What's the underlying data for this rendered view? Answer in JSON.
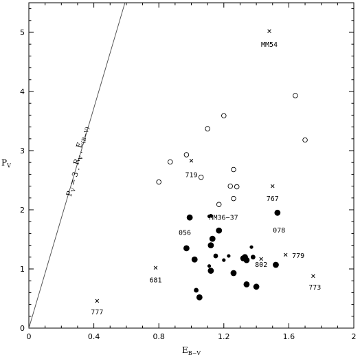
{
  "chart_data": {
    "type": "scatter",
    "xlim": [
      0,
      2
    ],
    "ylim": [
      0,
      5.5
    ],
    "xticks": [
      0,
      0.4,
      0.8,
      1.2,
      1.6,
      2
    ],
    "yticks": [
      0,
      1,
      2,
      3,
      4,
      5
    ],
    "xtick_labels": [
      "0",
      "0.4",
      "0.8",
      "1.2",
      "1.6",
      "2"
    ],
    "ytick_labels": [
      "0",
      "1",
      "2",
      "3",
      "4",
      "5"
    ],
    "xlabel": {
      "main": "E",
      "sub": "B−V"
    },
    "ylabel": {
      "main": "P",
      "sub": "V"
    },
    "grid": false,
    "relation_line": {
      "slope": 9.3,
      "label_parts": [
        "P",
        "V",
        " = 3 . ",
        "R",
        "V",
        " . ",
        "E",
        "(B−V)"
      ]
    },
    "open_points": [
      [
        0.8,
        2.47
      ],
      [
        0.87,
        2.81
      ],
      [
        0.97,
        2.93
      ],
      [
        1.06,
        2.55
      ],
      [
        1.1,
        3.37
      ],
      [
        1.2,
        3.59
      ],
      [
        1.17,
        2.09
      ],
      [
        1.24,
        2.4
      ],
      [
        1.26,
        2.68
      ],
      [
        1.26,
        2.19
      ],
      [
        1.28,
        2.39
      ],
      [
        1.64,
        3.93
      ],
      [
        1.7,
        3.18
      ]
    ],
    "filled_points": [
      {
        "x": 0.99,
        "y": 1.87,
        "s": "l"
      },
      {
        "x": 1.11,
        "y": 1.89,
        "s": "s"
      },
      {
        "x": 1.12,
        "y": 1.9,
        "s": "s"
      },
      {
        "x": 1.17,
        "y": 1.65,
        "s": "l"
      },
      {
        "x": 1.13,
        "y": 1.51,
        "s": "l"
      },
      {
        "x": 1.12,
        "y": 1.4,
        "s": "l"
      },
      {
        "x": 0.97,
        "y": 1.35,
        "s": "l"
      },
      {
        "x": 1.02,
        "y": 1.16,
        "s": "l"
      },
      {
        "x": 1.11,
        "y": 1.05,
        "s": "s"
      },
      {
        "x": 1.12,
        "y": 0.97,
        "s": "l"
      },
      {
        "x": 1.15,
        "y": 1.22,
        "s": "m"
      },
      {
        "x": 1.2,
        "y": 1.15,
        "s": "s"
      },
      {
        "x": 1.23,
        "y": 1.22,
        "s": "s"
      },
      {
        "x": 1.26,
        "y": 0.93,
        "s": "l"
      },
      {
        "x": 1.32,
        "y": 1.18,
        "s": "l"
      },
      {
        "x": 1.34,
        "y": 1.15,
        "s": "l"
      },
      {
        "x": 1.33,
        "y": 1.2,
        "s": "l"
      },
      {
        "x": 1.37,
        "y": 1.37,
        "s": "s"
      },
      {
        "x": 1.38,
        "y": 1.2,
        "s": "m"
      },
      {
        "x": 1.34,
        "y": 0.74,
        "s": "l"
      },
      {
        "x": 1.4,
        "y": 0.7,
        "s": "l"
      },
      {
        "x": 1.03,
        "y": 0.64,
        "s": "m"
      },
      {
        "x": 1.05,
        "y": 0.52,
        "s": "l"
      },
      {
        "x": 1.52,
        "y": 1.07,
        "s": "l"
      },
      {
        "x": 1.53,
        "y": 1.95,
        "s": "l"
      }
    ],
    "cross_points": [
      [
        1.48,
        5.02
      ],
      [
        1.0,
        2.83
      ],
      [
        1.5,
        2.4
      ],
      [
        1.58,
        1.24
      ],
      [
        1.43,
        1.17
      ],
      [
        0.78,
        1.02
      ],
      [
        1.75,
        0.88
      ],
      [
        0.42,
        0.46
      ]
    ],
    "annotations": [
      {
        "text": "MM54",
        "x": 1.48,
        "y": 4.8,
        "anchor": "middle"
      },
      {
        "text": "719",
        "x": 1.0,
        "y": 2.6,
        "anchor": "middle"
      },
      {
        "text": "767",
        "x": 1.5,
        "y": 2.2,
        "anchor": "middle"
      },
      {
        "text": "MM36−37",
        "x": 1.11,
        "y": 1.88,
        "anchor": "start"
      },
      {
        "text": "056",
        "x": 0.96,
        "y": 1.62,
        "anchor": "middle"
      },
      {
        "text": "078",
        "x": 1.54,
        "y": 1.66,
        "anchor": "middle"
      },
      {
        "text": "779",
        "x": 1.62,
        "y": 1.23,
        "anchor": "start"
      },
      {
        "text": "802",
        "x": 1.43,
        "y": 1.08,
        "anchor": "middle"
      },
      {
        "text": "681",
        "x": 0.78,
        "y": 0.82,
        "anchor": "middle"
      },
      {
        "text": "773",
        "x": 1.76,
        "y": 0.7,
        "anchor": "middle"
      },
      {
        "text": "777",
        "x": 0.42,
        "y": 0.28,
        "anchor": "middle"
      }
    ],
    "colors": {
      "axis": "#000000",
      "marker": "#000000",
      "line": "#555555"
    }
  }
}
